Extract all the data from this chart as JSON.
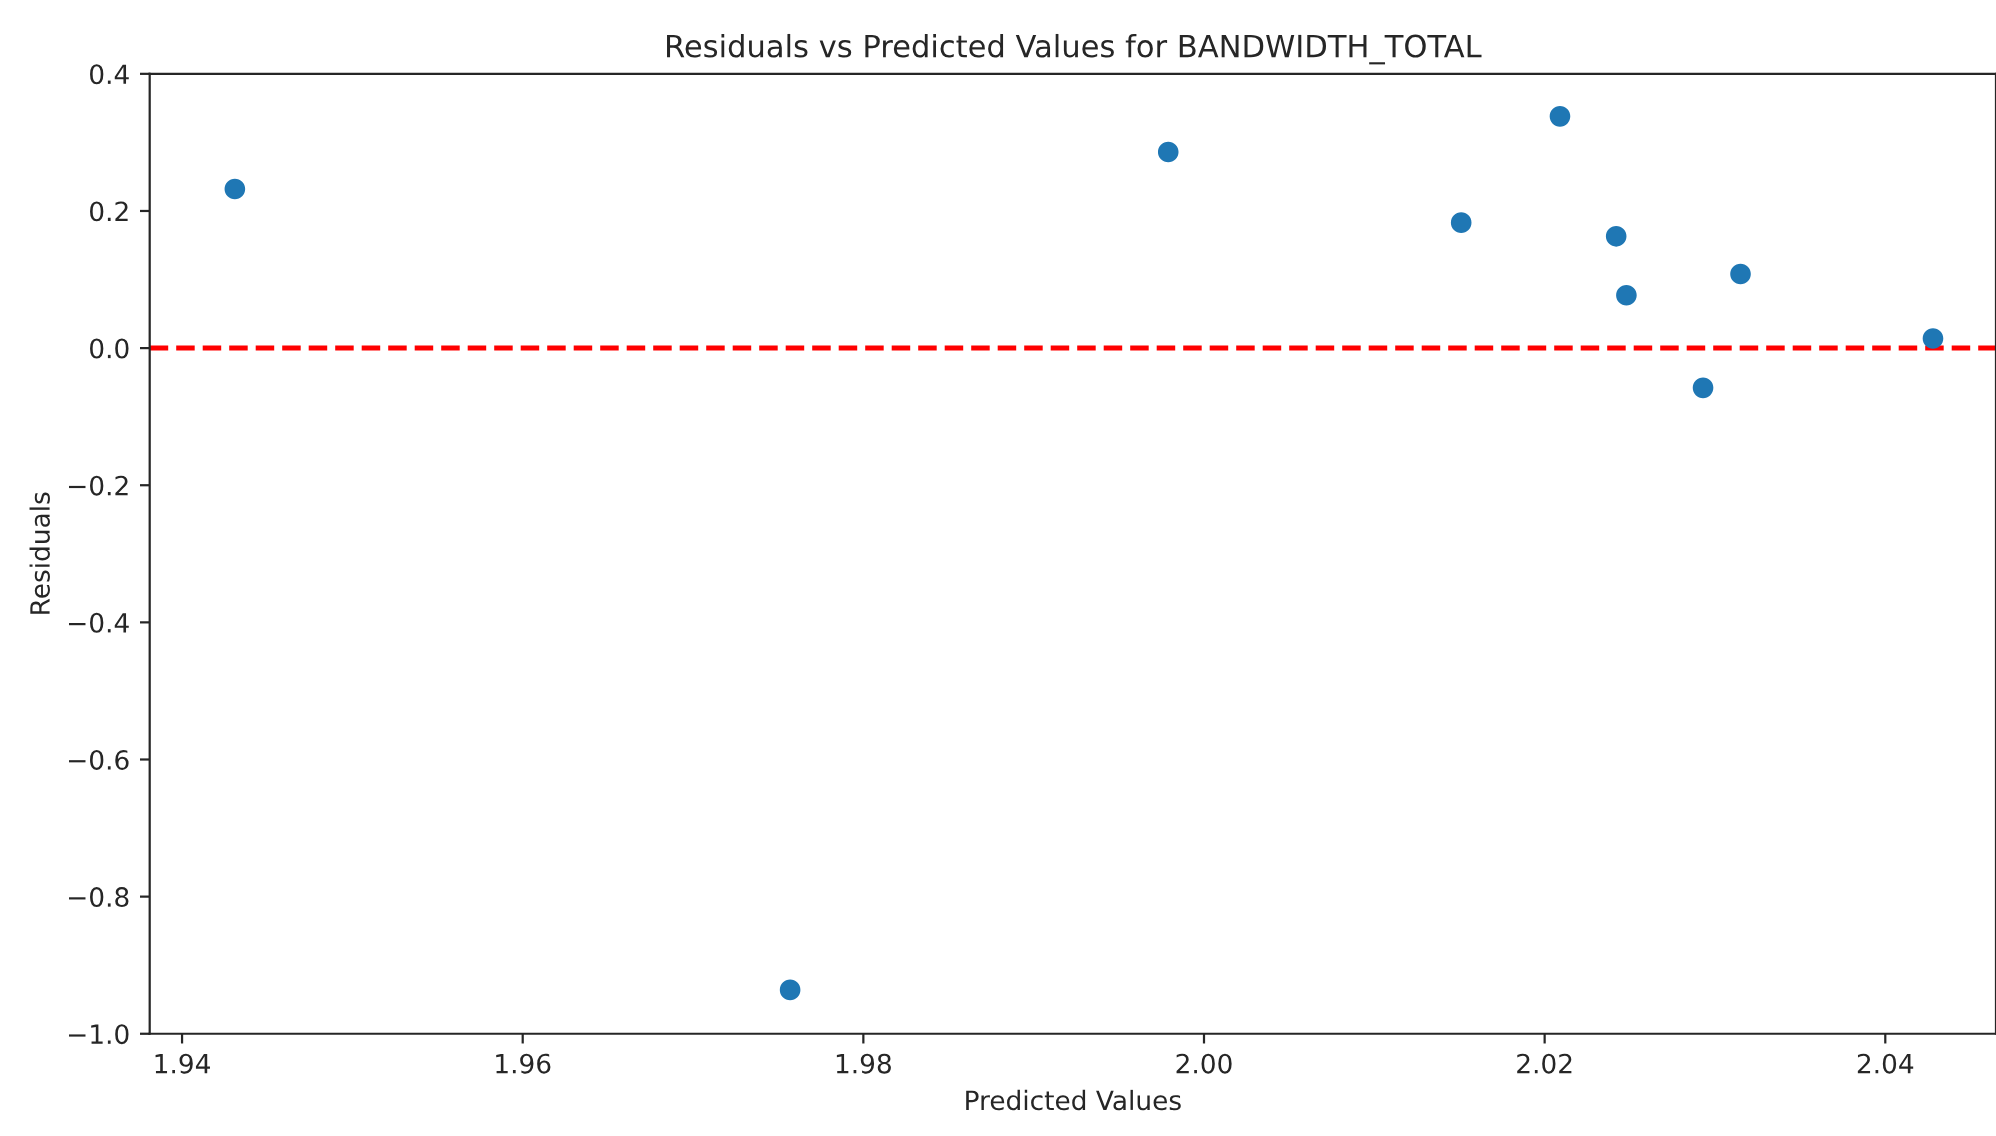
{
  "chart_data": {
    "type": "scatter",
    "title": "Residuals vs Predicted Values for BANDWIDTH_TOTAL",
    "xlabel": "Predicted Values",
    "ylabel": "Residuals",
    "x": [
      1.9431,
      1.9757,
      1.9979,
      2.0151,
      2.0209,
      2.0242,
      2.0248,
      2.0293,
      2.0315,
      2.0428
    ],
    "series": [
      {
        "color": "#1f77b4",
        "values": [
          0.232,
          -0.936,
          0.286,
          0.183,
          0.338,
          0.163,
          0.077,
          -0.058,
          0.108,
          0.014
        ]
      }
    ],
    "xlim": [
      1.9381,
      2.0465
    ],
    "xticks": [
      {
        "value": 1.94,
        "label": "1.94"
      },
      {
        "value": 1.96,
        "label": "1.96"
      },
      {
        "value": 1.98,
        "label": "1.98"
      },
      {
        "value": 2.0,
        "label": "2.00"
      },
      {
        "value": 2.02,
        "label": "2.02"
      },
      {
        "value": 2.04,
        "label": "2.04"
      }
    ],
    "ylim": [
      -1.0,
      0.4
    ],
    "yticks": [
      {
        "value": -1.0,
        "label": "−1.0"
      },
      {
        "value": -0.8,
        "label": "−0.8"
      },
      {
        "value": -0.6,
        "label": "−0.6"
      },
      {
        "value": -0.4,
        "label": "−0.4"
      },
      {
        "value": -0.2,
        "label": "−0.2"
      },
      {
        "value": 0.0,
        "label": "0.0"
      },
      {
        "value": 0.2,
        "label": "0.2"
      },
      {
        "value": 0.4,
        "label": "0.4"
      }
    ],
    "ref_lines": [
      {
        "axis": "y",
        "value": 0,
        "color": "#ff0000",
        "line_style": "dashed"
      }
    ],
    "marker": "circle",
    "grid": false
  }
}
